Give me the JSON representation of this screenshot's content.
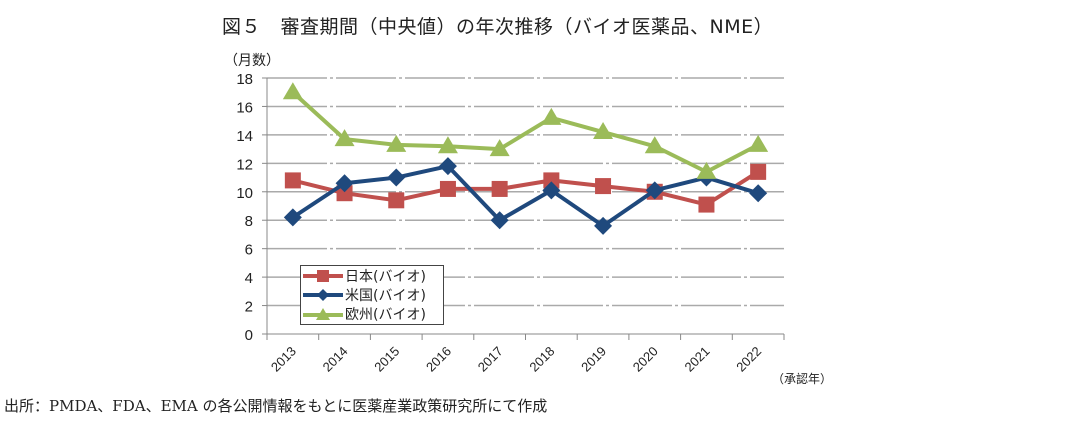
{
  "chart_data": {
    "type": "line",
    "title": "図５　審査期間（中央値）の年次推移（バイオ医薬品、NME）",
    "ylabel": "（月数）",
    "xlabel": "（承認年）",
    "categories": [
      "2013",
      "2014",
      "2015",
      "2016",
      "2017",
      "2018",
      "2019",
      "2020",
      "2021",
      "2022"
    ],
    "ylim": [
      0,
      18
    ],
    "yticks": [
      0,
      2,
      4,
      6,
      8,
      10,
      12,
      14,
      16,
      18
    ],
    "grid": true,
    "legend": "inside-bottom-left",
    "series": [
      {
        "name": "日本(バイオ)",
        "color": "#c0504d",
        "marker": "square",
        "values": [
          10.8,
          9.9,
          9.4,
          10.2,
          10.2,
          10.8,
          10.4,
          10.0,
          9.1,
          11.4
        ]
      },
      {
        "name": "米国(バイオ)",
        "color": "#1f497d",
        "marker": "diamond",
        "values": [
          8.2,
          10.6,
          11.0,
          11.8,
          8.0,
          10.1,
          7.6,
          10.1,
          11.0,
          9.9
        ]
      },
      {
        "name": "欧州(バイオ)",
        "color": "#9bbb59",
        "marker": "triangle",
        "values": [
          17.0,
          13.7,
          13.3,
          13.2,
          13.0,
          15.2,
          14.2,
          13.2,
          11.4,
          13.3
        ]
      }
    ]
  },
  "source": "出所：PMDA、FDA、EMA の各公開情報をもとに医薬産業政策研究所にて作成"
}
